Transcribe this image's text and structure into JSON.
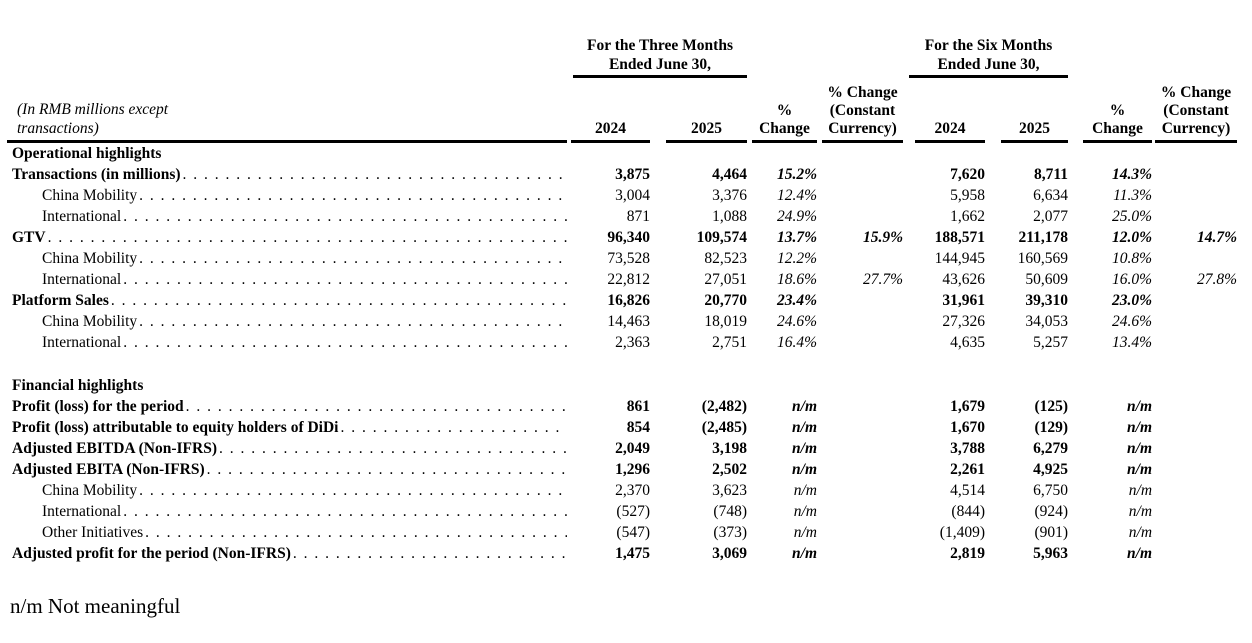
{
  "note": {
    "line1": "(In RMB millions except",
    "line2": "transactions)"
  },
  "footnote": "n/m Not meaningful",
  "table": {
    "period_groups": [
      {
        "line1": "For the Three Months",
        "line2": "Ended June 30,"
      },
      {
        "line1": "For the Six Months",
        "line2": "Ended June 30,"
      }
    ],
    "column_headers": [
      [
        "2024"
      ],
      [
        "2025"
      ],
      [
        "%",
        "Change"
      ],
      [
        "% Change",
        "(Constant",
        "Currency)"
      ],
      [
        "2024"
      ],
      [
        "2025"
      ],
      [
        "%",
        "Change"
      ],
      [
        "% Change",
        "(Constant",
        "Currency)"
      ]
    ],
    "rows": [
      {
        "type": "section",
        "label": "Operational highlights"
      },
      {
        "type": "main",
        "label": "Transactions (in millions)",
        "values": [
          "3,875",
          "4,464",
          "15.2%",
          "",
          "7,620",
          "8,711",
          "14.3%",
          ""
        ]
      },
      {
        "type": "sub",
        "label": "China Mobility",
        "values": [
          "3,004",
          "3,376",
          "12.4%",
          "",
          "5,958",
          "6,634",
          "11.3%",
          ""
        ]
      },
      {
        "type": "sub",
        "label": "International",
        "values": [
          "871",
          "1,088",
          "24.9%",
          "",
          "1,662",
          "2,077",
          "25.0%",
          ""
        ]
      },
      {
        "type": "main",
        "label": "GTV",
        "values": [
          "96,340",
          "109,574",
          "13.7%",
          "15.9%",
          "188,571",
          "211,178",
          "12.0%",
          "14.7%"
        ]
      },
      {
        "type": "sub",
        "label": "China Mobility",
        "values": [
          "73,528",
          "82,523",
          "12.2%",
          "",
          "144,945",
          "160,569",
          "10.8%",
          ""
        ]
      },
      {
        "type": "sub",
        "label": "International",
        "values": [
          "22,812",
          "27,051",
          "18.6%",
          "27.7%",
          "43,626",
          "50,609",
          "16.0%",
          "27.8%"
        ]
      },
      {
        "type": "main",
        "label": "Platform Sales",
        "values": [
          "16,826",
          "20,770",
          "23.4%",
          "",
          "31,961",
          "39,310",
          "23.0%",
          ""
        ]
      },
      {
        "type": "sub",
        "label": "China Mobility",
        "values": [
          "14,463",
          "18,019",
          "24.6%",
          "",
          "27,326",
          "34,053",
          "24.6%",
          ""
        ]
      },
      {
        "type": "sub",
        "label": "International",
        "values": [
          "2,363",
          "2,751",
          "16.4%",
          "",
          "4,635",
          "5,257",
          "13.4%",
          ""
        ]
      },
      {
        "type": "spacer"
      },
      {
        "type": "section",
        "label": "Financial highlights"
      },
      {
        "type": "main",
        "label": "Profit (loss) for the period",
        "values": [
          "861",
          "(2,482)",
          "n/m",
          "",
          "1,679",
          "(125)",
          "n/m",
          ""
        ]
      },
      {
        "type": "main",
        "label": "Profit (loss) attributable to equity holders of DiDi",
        "values": [
          "854",
          "(2,485)",
          "n/m",
          "",
          "1,670",
          "(129)",
          "n/m",
          ""
        ]
      },
      {
        "type": "main",
        "label": "Adjusted EBITDA (Non-IFRS)",
        "values": [
          "2,049",
          "3,198",
          "n/m",
          "",
          "3,788",
          "6,279",
          "n/m",
          ""
        ]
      },
      {
        "type": "main",
        "label": "Adjusted EBITA (Non-IFRS)",
        "values": [
          "1,296",
          "2,502",
          "n/m",
          "",
          "2,261",
          "4,925",
          "n/m",
          ""
        ]
      },
      {
        "type": "sub",
        "label": "China Mobility",
        "values": [
          "2,370",
          "3,623",
          "n/m",
          "",
          "4,514",
          "6,750",
          "n/m",
          ""
        ]
      },
      {
        "type": "sub",
        "label": "International",
        "values": [
          "(527)",
          "(748)",
          "n/m",
          "",
          "(844)",
          "(924)",
          "n/m",
          ""
        ]
      },
      {
        "type": "sub",
        "label": "Other Initiatives",
        "values": [
          "(547)",
          "(373)",
          "n/m",
          "",
          "(1,409)",
          "(901)",
          "n/m",
          ""
        ]
      },
      {
        "type": "main",
        "label": "Adjusted profit for the period (Non-IFRS)",
        "values": [
          "1,475",
          "3,069",
          "n/m",
          "",
          "2,819",
          "5,963",
          "n/m",
          ""
        ]
      }
    ]
  }
}
